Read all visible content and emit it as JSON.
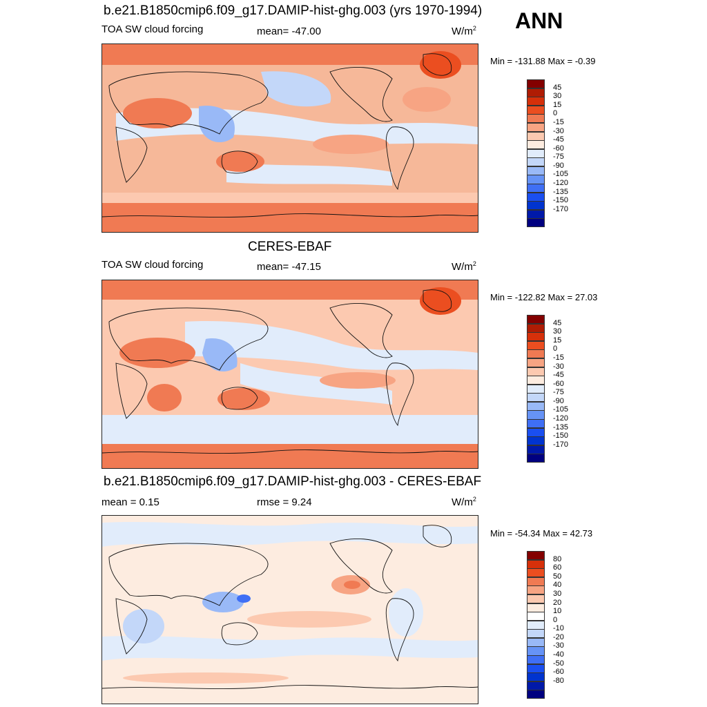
{
  "season": "ANN",
  "colors": {
    "abs": [
      "#000080",
      "#0019a9",
      "#0034cf",
      "#1a4ff0",
      "#3f6ff5",
      "#6693f6",
      "#99b9f7",
      "#c3d7f9",
      "#e1ecfb",
      "#fdece0",
      "#fcc9b0",
      "#f7a483",
      "#f07a53",
      "#eb4e20",
      "#d6300a",
      "#af1c04",
      "#830000"
    ],
    "diff": [
      "#000080",
      "#0019a9",
      "#0034cf",
      "#1a4ff0",
      "#3f6ff5",
      "#6693f6",
      "#99b9f7",
      "#c3d7f9",
      "#e1ecfb",
      "#ffffff",
      "#fdece0",
      "#fcc9b0",
      "#f7a483",
      "#f07a53",
      "#eb4e20",
      "#d6300a",
      "#830000"
    ]
  },
  "panels": [
    {
      "title": "b.e21.B1850cmip6.f09_g17.DAMIP-hist-ghg.003 (yrs 1970-1994)",
      "left_label": "TOA SW cloud forcing",
      "center_label": "mean= -47.00",
      "units": "W/m",
      "units_sup": "2",
      "minmax": "Min = -131.88 Max =  -0.39",
      "colorbar_labels": [
        "45",
        "30",
        "15",
        "0",
        "-15",
        "-30",
        "-45",
        "-60",
        "-75",
        "-90",
        "-105",
        "-120",
        "-135",
        "-150",
        "-170"
      ]
    },
    {
      "title": "CERES-EBAF",
      "left_label": "TOA SW cloud forcing",
      "center_label": "mean= -47.15",
      "units": "W/m",
      "units_sup": "2",
      "minmax": "Min = -122.82 Max =  27.03",
      "colorbar_labels": [
        "45",
        "30",
        "15",
        "0",
        "-15",
        "-30",
        "-45",
        "-60",
        "-75",
        "-90",
        "-105",
        "-120",
        "-135",
        "-150",
        "-170"
      ]
    },
    {
      "title": "b.e21.B1850cmip6.f09_g17.DAMIP-hist-ghg.003 - CERES-EBAF",
      "left_label": "mean =   0.15",
      "center_label": "rmse =   9.24",
      "units": "W/m",
      "units_sup": "2",
      "minmax": "Min = -54.34 Max =  42.73",
      "colorbar_labels": [
        "80",
        "60",
        "50",
        "40",
        "30",
        "20",
        "10",
        "0",
        "-10",
        "-20",
        "-30",
        "-40",
        "-50",
        "-60",
        "-80"
      ]
    }
  ]
}
